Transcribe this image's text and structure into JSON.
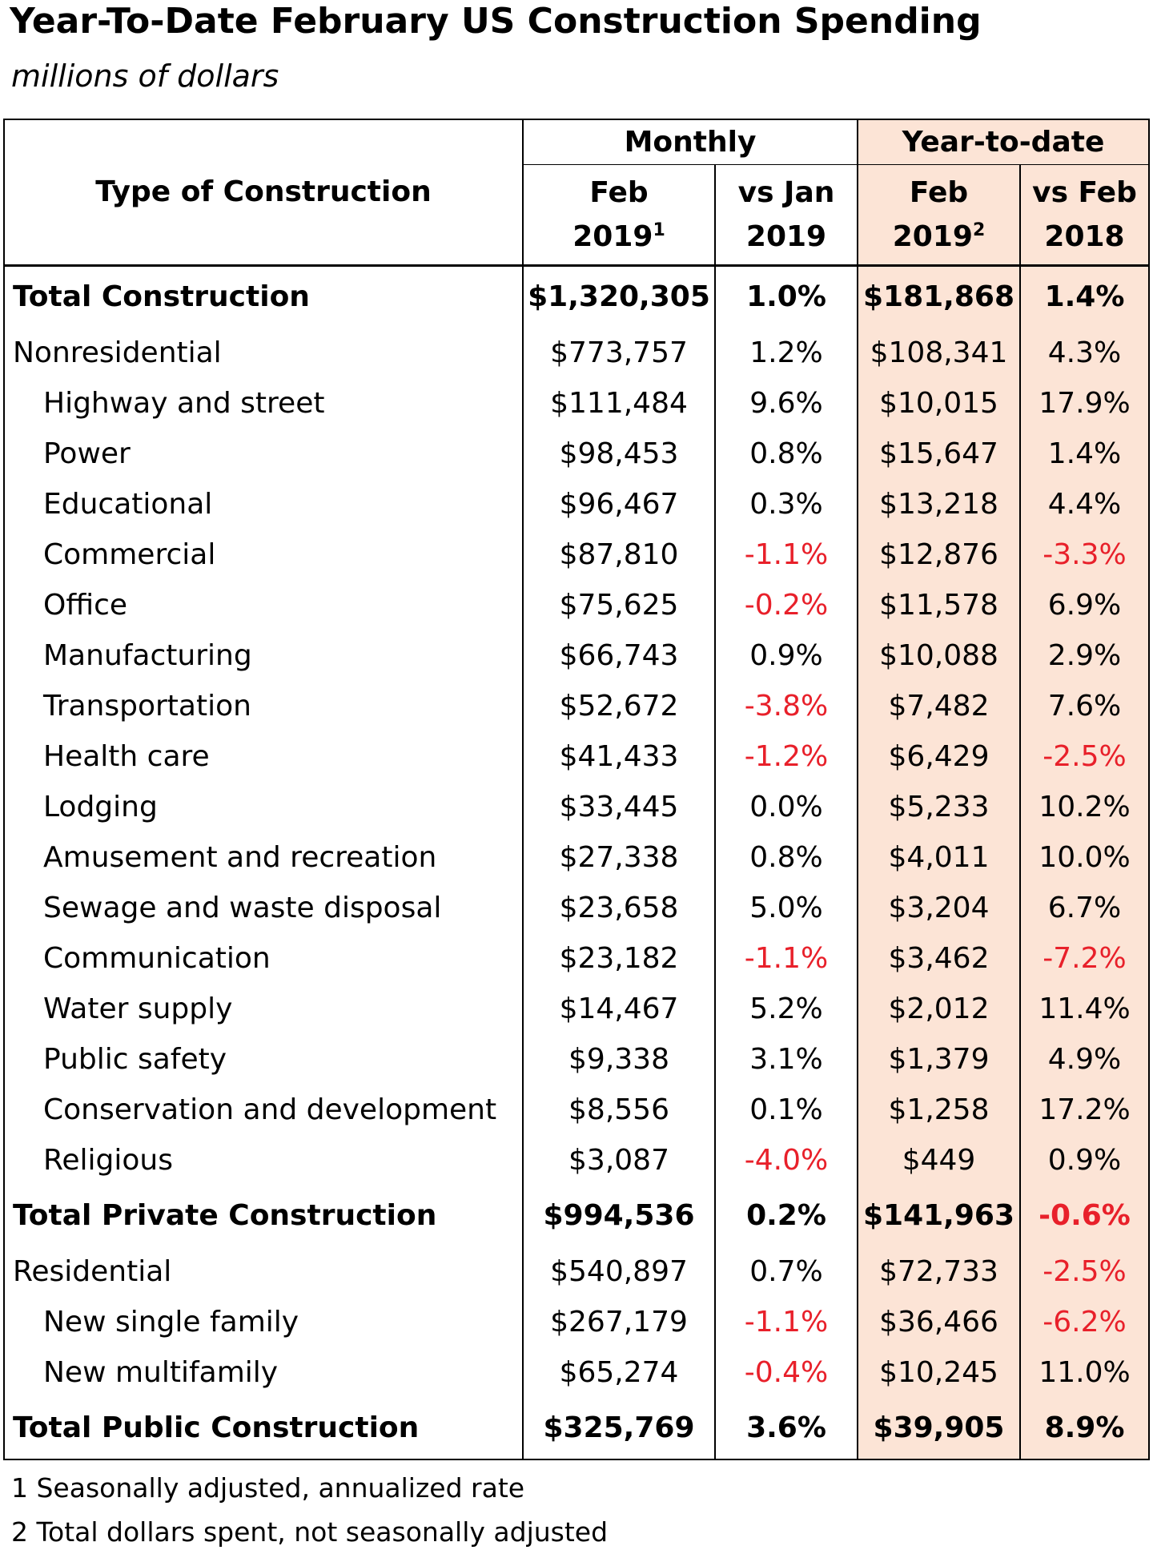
{
  "title": "Year-To-Date February US Construction Spending",
  "subtitle": "millions of dollars",
  "table": {
    "header": {
      "label": "Type of Construction",
      "groups": [
        "Monthly",
        "Year-to-date"
      ],
      "columns": [
        {
          "top": "Feb",
          "bottom": "2019",
          "note": "1"
        },
        {
          "top": "vs Jan",
          "bottom": "2019"
        },
        {
          "top": "Feb",
          "bottom": "2019",
          "note": "2"
        },
        {
          "top": "vs Feb",
          "bottom": "2018"
        }
      ]
    },
    "rows": [
      [
        "Total Construction",
        "$1,320,305",
        "1.0%",
        "$181,868",
        "1.4%"
      ],
      [
        "Nonresidential",
        "$773,757",
        "1.2%",
        "$108,341",
        "4.3%"
      ],
      [
        "Highway and street",
        "$111,484",
        "9.6%",
        "$10,015",
        "17.9%"
      ],
      [
        "Power",
        "$98,453",
        "0.8%",
        "$15,647",
        "1.4%"
      ],
      [
        "Educational",
        "$96,467",
        "0.3%",
        "$13,218",
        "4.4%"
      ],
      [
        "Commercial",
        "$87,810",
        "-1.1%",
        "$12,876",
        "-3.3%"
      ],
      [
        "Office",
        "$75,625",
        "-0.2%",
        "$11,578",
        "6.9%"
      ],
      [
        "Manufacturing",
        "$66,743",
        "0.9%",
        "$10,088",
        "2.9%"
      ],
      [
        "Transportation",
        "$52,672",
        "-3.8%",
        "$7,482",
        "7.6%"
      ],
      [
        "Health care",
        "$41,433",
        "-1.2%",
        "$6,429",
        "-2.5%"
      ],
      [
        "Lodging",
        "$33,445",
        "0.0%",
        "$5,233",
        "10.2%"
      ],
      [
        "Amusement and recreation",
        "$27,338",
        "0.8%",
        "$4,011",
        "10.0%"
      ],
      [
        "Sewage and waste disposal",
        "$23,658",
        "5.0%",
        "$3,204",
        "6.7%"
      ],
      [
        "Communication",
        "$23,182",
        "-1.1%",
        "$3,462",
        "-7.2%"
      ],
      [
        "Water supply",
        "$14,467",
        "5.2%",
        "$2,012",
        "11.4%"
      ],
      [
        "Public safety",
        "$9,338",
        "3.1%",
        "$1,379",
        "4.9%"
      ],
      [
        "Conservation and development",
        "$8,556",
        "0.1%",
        "$1,258",
        "17.2%"
      ],
      [
        "Religious",
        "$3,087",
        "-4.0%",
        "$449",
        "0.9%"
      ],
      [
        "Total Private Construction",
        "$994,536",
        "0.2%",
        "$141,963",
        "-0.6%"
      ],
      [
        "Residential",
        "$540,897",
        "0.7%",
        "$72,733",
        "-2.5%"
      ],
      [
        "New single family",
        "$267,179",
        "-1.1%",
        "$36,466",
        "-6.2%"
      ],
      [
        "New multifamily",
        "$65,274",
        "-0.4%",
        "$10,245",
        "11.0%"
      ],
      [
        "Total Public Construction",
        "$325,769",
        "3.6%",
        "$39,905",
        "8.9%"
      ]
    ]
  },
  "footnotes": [
    "1 Seasonally adjusted, annualized rate",
    "2 Total dollars spent, not seasonally adjusted"
  ]
}
